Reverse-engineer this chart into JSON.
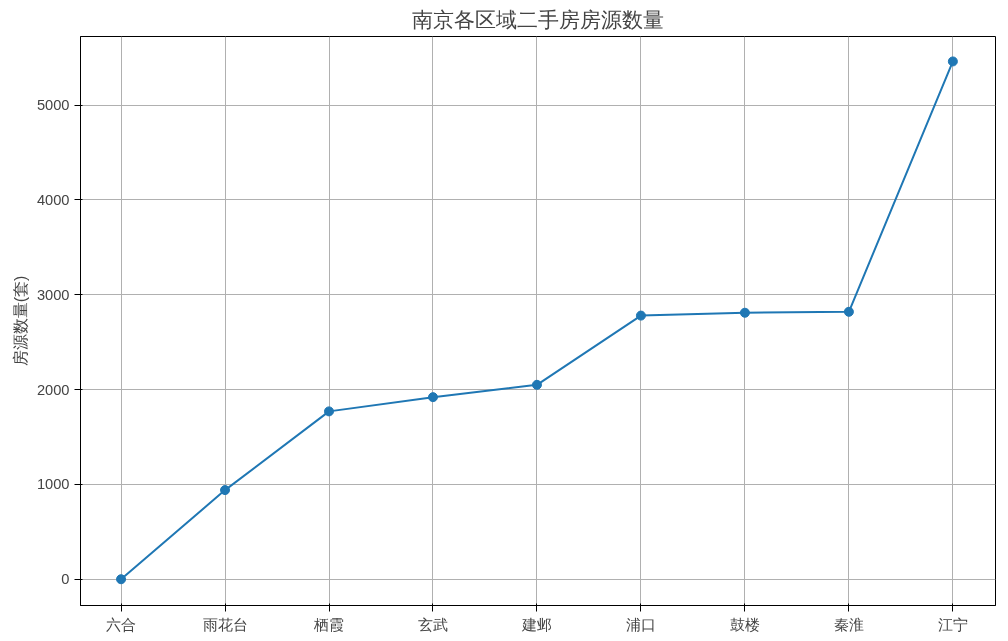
{
  "chart_data": {
    "type": "line",
    "title": "南京各区域二手房房源数量",
    "ylabel": "房源数量(套)",
    "categories": [
      "六合",
      "雨花台",
      "栖霞",
      "玄武",
      "建邺",
      "浦口",
      "鼓楼",
      "秦淮",
      "江宁"
    ],
    "series": [
      {
        "color": "#1f77b4",
        "values": [
          0,
          940,
          1770,
          1920,
          2050,
          2780,
          2810,
          2820,
          5460
        ]
      }
    ],
    "ylim": [
      -277,
      5723
    ],
    "yticks": [
      0,
      1000,
      2000,
      3000,
      4000,
      5000
    ],
    "grid": true,
    "marker": "circle",
    "line_style": "solid"
  }
}
